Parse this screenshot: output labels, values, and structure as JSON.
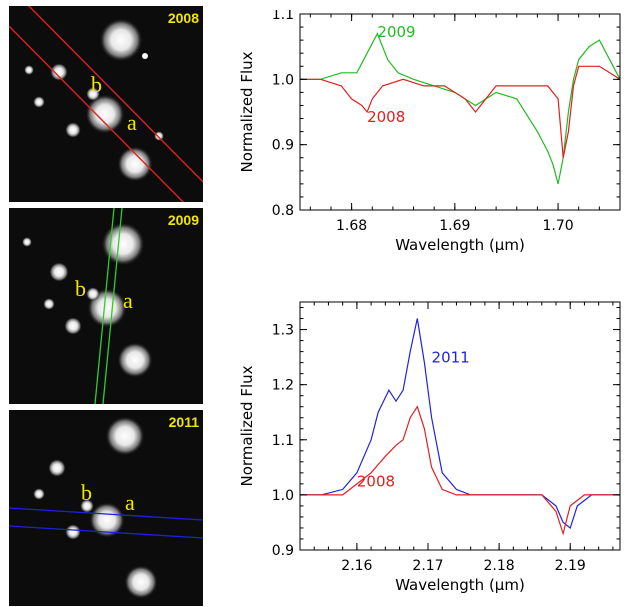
{
  "images": [
    {
      "year": "2008",
      "label_a": "a",
      "label_b": "b",
      "slit_color": "#e02020"
    },
    {
      "year": "2009",
      "label_a": "a",
      "label_b": "b",
      "slit_color": "#2ecc2e"
    },
    {
      "year": "2011",
      "label_a": "a",
      "label_b": "b",
      "slit_color": "#2020e0"
    }
  ],
  "chart_data": [
    {
      "type": "line",
      "xlabel": "Wavelength (μm)",
      "ylabel": "Normalized Flux",
      "xlim": [
        1.675,
        1.706
      ],
      "ylim": [
        0.8,
        1.1
      ],
      "xticks": [
        "1.68",
        "1.69",
        "1.70"
      ],
      "yticks": [
        "0.8",
        "0.9",
        "1.0",
        "1.1"
      ],
      "series": [
        {
          "name": "2009",
          "color": "#22bb22",
          "x": [
            1.675,
            1.677,
            1.679,
            1.6805,
            1.6815,
            1.6825,
            1.6835,
            1.6845,
            1.686,
            1.688,
            1.69,
            1.692,
            1.694,
            1.696,
            1.698,
            1.699,
            1.6995,
            1.7,
            1.7005,
            1.701,
            1.7015,
            1.702,
            1.703,
            1.704,
            1.705,
            1.706
          ],
          "y": [
            1.0,
            1.0,
            1.01,
            1.01,
            1.04,
            1.07,
            1.03,
            1.01,
            1.0,
            0.99,
            0.98,
            0.96,
            0.98,
            0.97,
            0.92,
            0.89,
            0.87,
            0.84,
            0.88,
            0.95,
            1.0,
            1.03,
            1.05,
            1.06,
            1.03,
            1.0
          ]
        },
        {
          "name": "2008",
          "color": "#e02020",
          "x": [
            1.675,
            1.677,
            1.679,
            1.68,
            1.681,
            1.6815,
            1.682,
            1.683,
            1.685,
            1.687,
            1.689,
            1.691,
            1.692,
            1.693,
            1.694,
            1.696,
            1.698,
            1.699,
            1.7,
            1.7005,
            1.701,
            1.7015,
            1.702,
            1.703,
            1.704,
            1.705,
            1.706
          ],
          "y": [
            1.0,
            1.0,
            0.99,
            0.97,
            0.96,
            0.95,
            0.97,
            0.99,
            1.0,
            0.99,
            0.99,
            0.97,
            0.95,
            0.97,
            0.99,
            0.99,
            0.99,
            0.99,
            0.97,
            0.88,
            0.92,
            0.99,
            1.02,
            1.02,
            1.02,
            1.01,
            1.0
          ]
        }
      ],
      "annotations": [
        {
          "text": "2009",
          "x": 1.6825,
          "y": 1.065,
          "color": "#22bb22"
        },
        {
          "text": "2008",
          "x": 1.6815,
          "y": 0.935,
          "color": "#e02020"
        }
      ]
    },
    {
      "type": "line",
      "xlabel": "Wavelength (μm)",
      "ylabel": "Normalized Flux",
      "xlim": [
        2.152,
        2.197
      ],
      "ylim": [
        0.9,
        1.35
      ],
      "xticks": [
        "2.16",
        "2.17",
        "2.18",
        "2.19"
      ],
      "yticks": [
        "0.9",
        "1.0",
        "1.1",
        "1.2",
        "1.3"
      ],
      "series": [
        {
          "name": "2011",
          "color": "#2222dd",
          "x": [
            2.152,
            2.155,
            2.158,
            2.16,
            2.162,
            2.163,
            2.1645,
            2.1655,
            2.1665,
            2.1675,
            2.1685,
            2.1695,
            2.1705,
            2.172,
            2.174,
            2.176,
            2.18,
            2.184,
            2.186,
            2.188,
            2.189,
            2.19,
            2.191,
            2.193,
            2.195,
            2.197
          ],
          "y": [
            1.0,
            1.0,
            1.01,
            1.04,
            1.1,
            1.15,
            1.19,
            1.17,
            1.19,
            1.26,
            1.32,
            1.24,
            1.14,
            1.04,
            1.01,
            1.0,
            1.0,
            1.0,
            1.0,
            0.98,
            0.95,
            0.94,
            0.98,
            1.0,
            1.0,
            1.0
          ]
        },
        {
          "name": "2008",
          "color": "#e02020",
          "x": [
            2.152,
            2.155,
            2.158,
            2.16,
            2.162,
            2.164,
            2.1655,
            2.1665,
            2.1675,
            2.1685,
            2.1695,
            2.1705,
            2.172,
            2.174,
            2.176,
            2.18,
            2.184,
            2.186,
            2.188,
            2.189,
            2.19,
            2.192,
            2.195,
            2.197
          ],
          "y": [
            1.0,
            1.0,
            1.0,
            1.02,
            1.04,
            1.07,
            1.09,
            1.1,
            1.14,
            1.16,
            1.12,
            1.05,
            1.01,
            1.0,
            1.0,
            1.0,
            1.0,
            1.0,
            0.97,
            0.93,
            0.98,
            1.0,
            1.0,
            1.0
          ]
        }
      ],
      "annotations": [
        {
          "text": "2011",
          "x": 2.1705,
          "y": 1.24,
          "color": "#2222dd"
        },
        {
          "text": "2008",
          "x": 2.16,
          "y": 1.015,
          "color": "#e02020"
        }
      ]
    }
  ]
}
